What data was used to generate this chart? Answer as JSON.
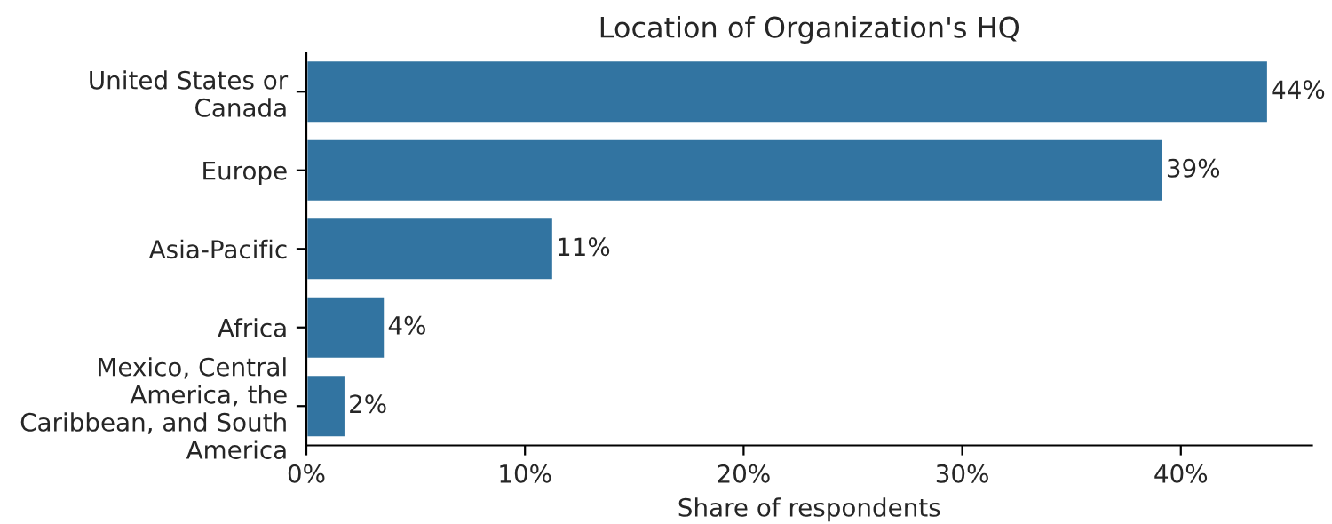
{
  "chart_data": {
    "type": "bar",
    "orientation": "horizontal",
    "title": "Location of Organization's HQ",
    "xlabel": "Share of respondents",
    "categories": [
      "United States or\nCanada",
      "Europe",
      "Asia-Pacific",
      "Africa",
      "Mexico, Central\nAmerica, the\nCaribbean, and South\nAmerica"
    ],
    "values": [
      44.0,
      39.2,
      11.3,
      3.6,
      1.8
    ],
    "value_labels": [
      "44%",
      "39%",
      "11%",
      "4%",
      "2%"
    ],
    "color": "#3274a1",
    "xlim": [
      0,
      46
    ],
    "xticks": [
      {
        "value": 0,
        "label": "0%"
      },
      {
        "value": 10,
        "label": "10%"
      },
      {
        "value": 20,
        "label": "20%"
      },
      {
        "value": 30,
        "label": "30%"
      },
      {
        "value": 40,
        "label": "40%"
      }
    ],
    "grid": false,
    "legend": false
  }
}
